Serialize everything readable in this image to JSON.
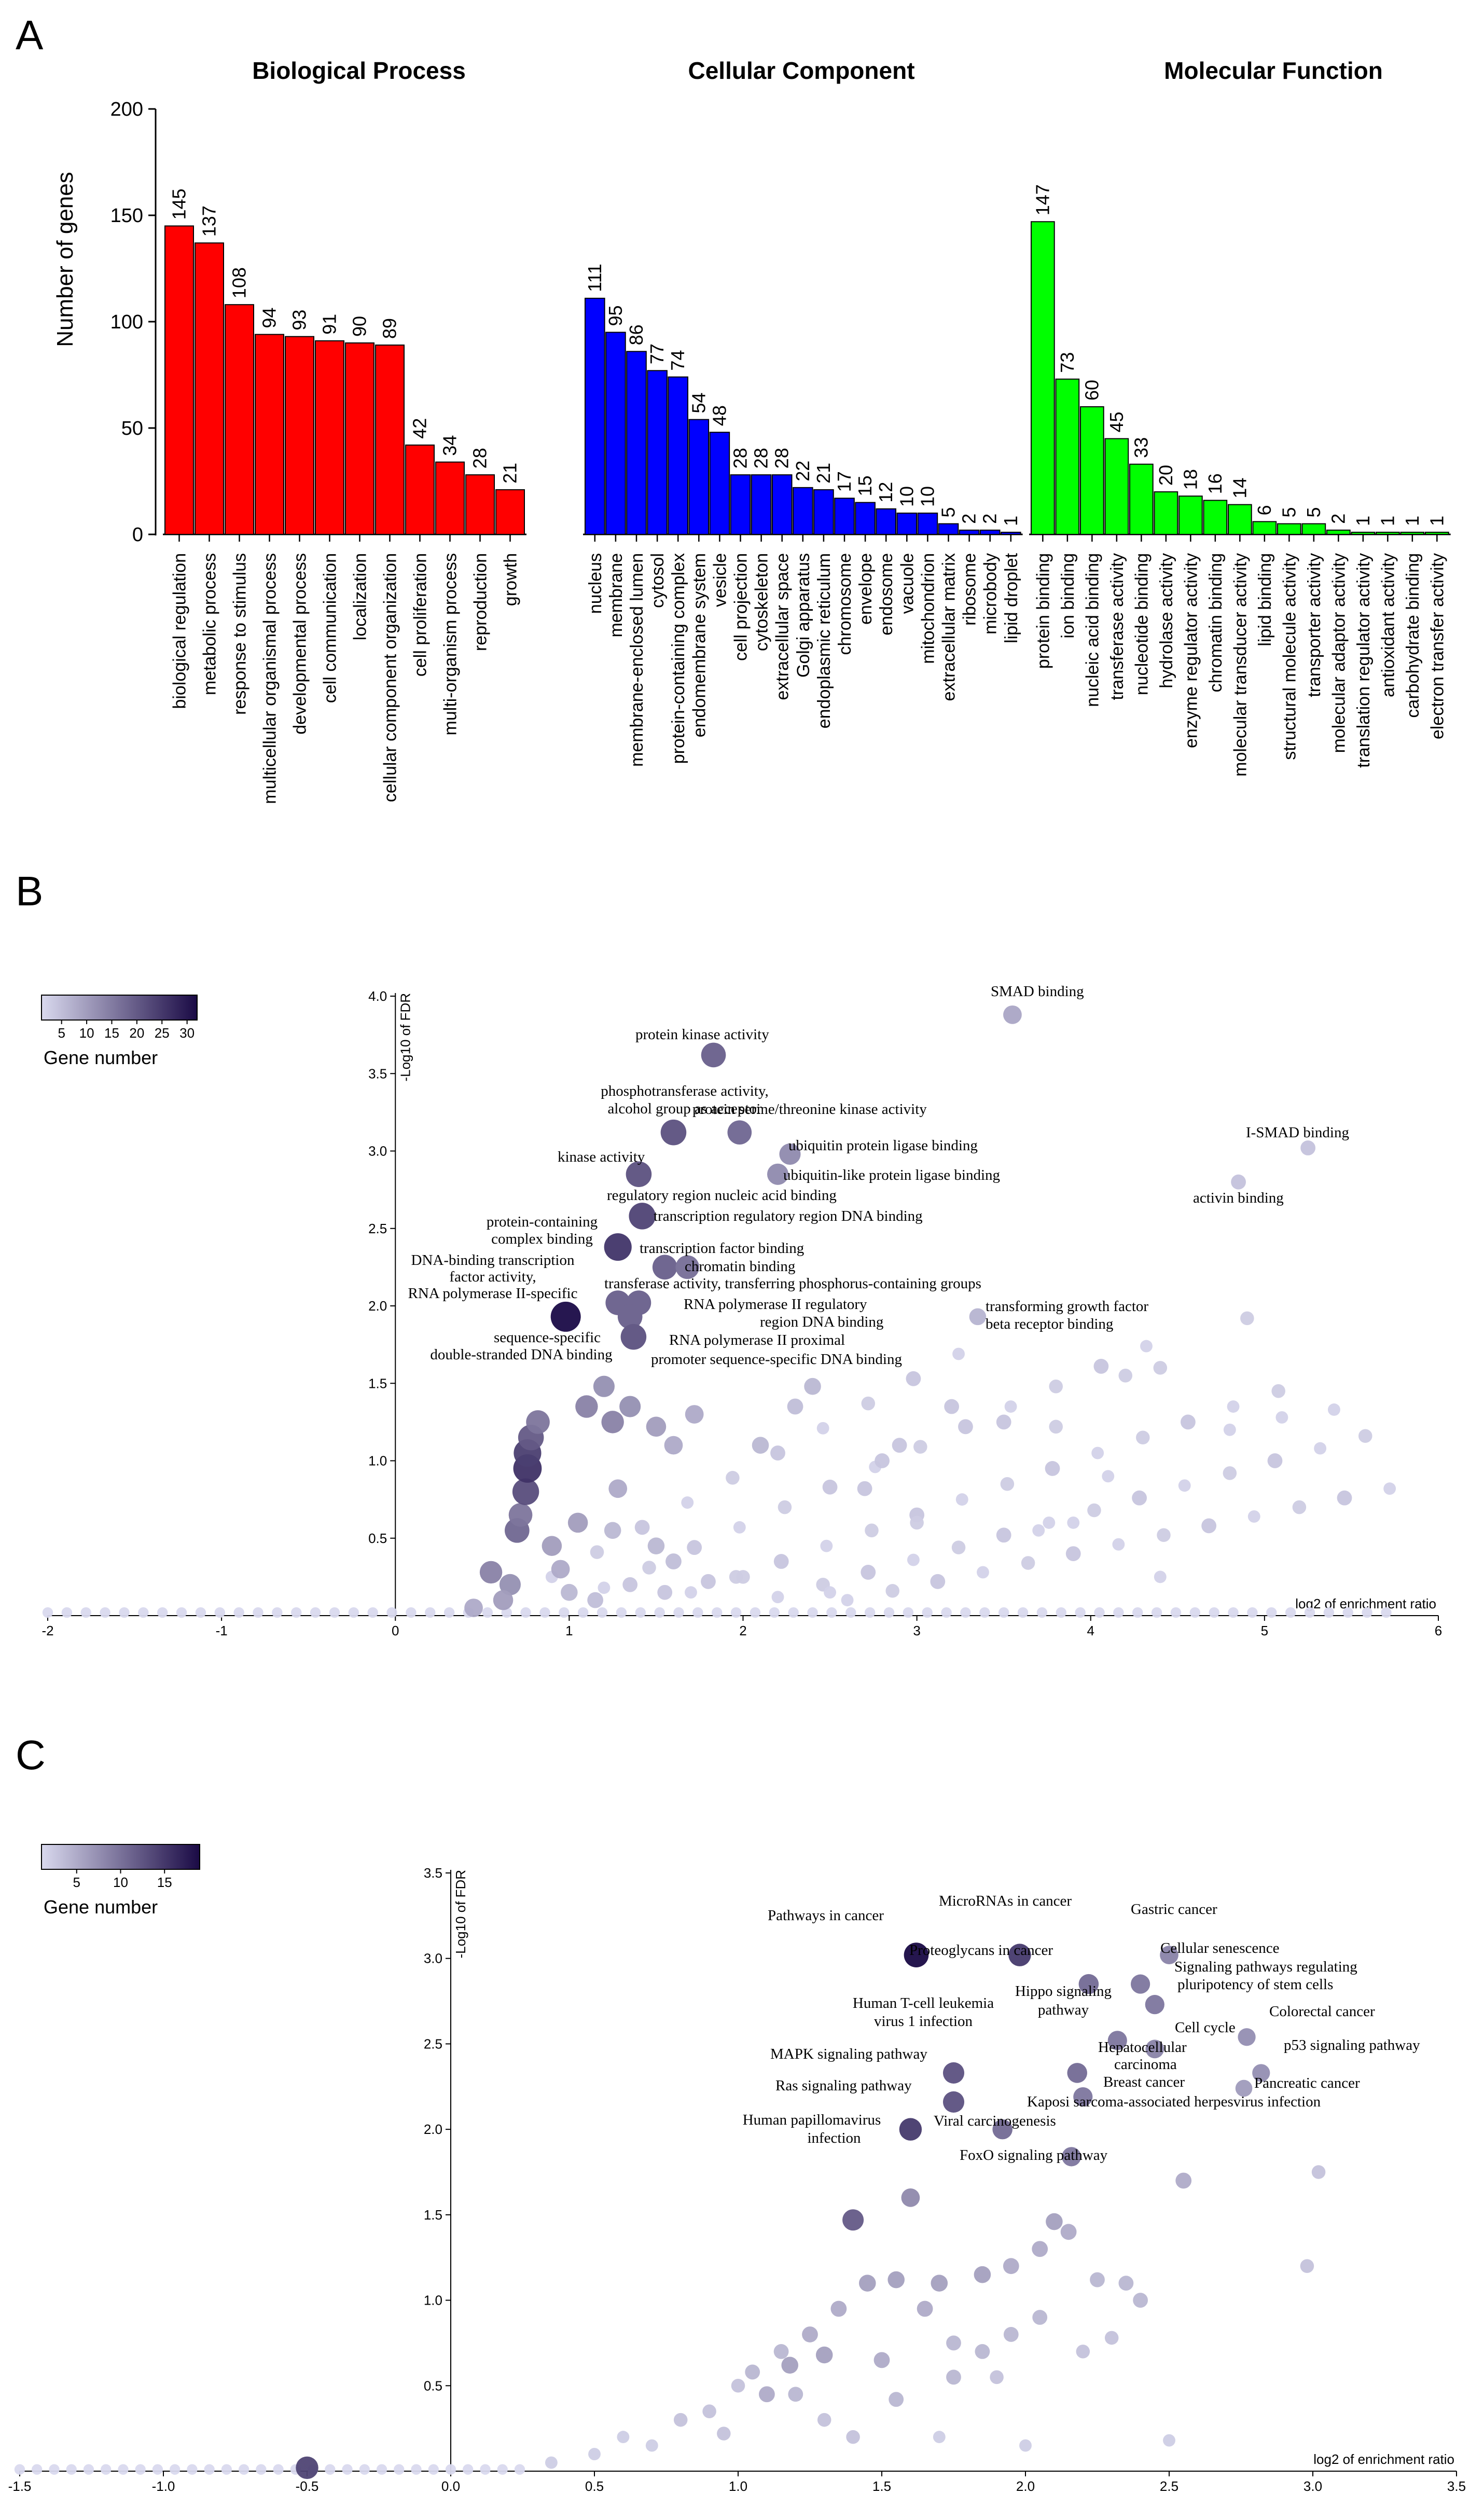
{
  "panel_letters": [
    "A",
    "B",
    "C"
  ],
  "chart_data": [
    {
      "type": "bar",
      "ylabel": "Number of genes",
      "ylim": [
        0,
        200
      ],
      "yticks": [
        0,
        50,
        100,
        150,
        200
      ],
      "groups": [
        {
          "name": "Biological Process",
          "color": "#ff0000",
          "categories": [
            "biological regulation",
            "metabolic process",
            "response to stimulus",
            "multicellular organismal process",
            "developmental process",
            "cell communication",
            "localization",
            "cellular component organization",
            "cell proliferation",
            "multi-organism process",
            "reproduction",
            "growth"
          ],
          "values": [
            145,
            137,
            108,
            94,
            93,
            91,
            90,
            89,
            42,
            34,
            28,
            21
          ]
        },
        {
          "name": "Cellular Component",
          "color": "#0000ff",
          "categories": [
            "nucleus",
            "membrane",
            "membrane-enclosed lumen",
            "cytosol",
            "protein-containing complex",
            "endomembrane system",
            "vesicle",
            "cell projection",
            "cytoskeleton",
            "extracellular space",
            "Golgi apparatus",
            "endoplasmic reticulum",
            "chromosome",
            "envelope",
            "endosome",
            "vacuole",
            "mitochondrion",
            "extracellular matrix",
            "ribosome",
            "microbody",
            "lipid droplet"
          ],
          "values": [
            111,
            95,
            86,
            77,
            74,
            54,
            48,
            28,
            28,
            28,
            22,
            21,
            17,
            15,
            12,
            10,
            10,
            5,
            2,
            2,
            1
          ]
        },
        {
          "name": "Molecular Function",
          "color": "#00ff00",
          "categories": [
            "protein binding",
            "ion binding",
            "nucleic acid binding",
            "transferase activity",
            "nucleotide binding",
            "hydrolase activity",
            "enzyme regulator activity",
            "chromatin binding",
            "molecular transducer activity",
            "lipid binding",
            "structural molecule activity",
            "transporter activity",
            "molecular adaptor activity",
            "translation regulator activity",
            "antioxidant activity",
            "carbohydrate binding",
            "electron transfer activity"
          ],
          "values": [
            147,
            73,
            60,
            45,
            33,
            20,
            18,
            16,
            14,
            6,
            5,
            5,
            2,
            1,
            1,
            1,
            1
          ]
        }
      ]
    },
    {
      "type": "scatter",
      "xlabel": "log2 of enrichment ratio",
      "ylabel": "-Log10 of FDR",
      "xlim": [
        -2,
        6
      ],
      "ylim": [
        0,
        4.0
      ],
      "xticks": [
        -2,
        -1,
        0,
        1,
        2,
        3,
        4,
        5,
        6
      ],
      "yticks": [
        "0.5",
        "1.0",
        "1.5",
        "2.0",
        "2.5",
        "3.0",
        "3.5",
        "4.0"
      ],
      "legend": {
        "title": "Gene number",
        "ticks": [
          "5",
          "10",
          "15",
          "20",
          "25",
          "30"
        ],
        "min": 1,
        "max": 32,
        "color_low": "#d9d9ee",
        "color_high": "#1a0a45"
      },
      "labeled_points": [
        {
          "x": 3.55,
          "y": 3.88,
          "n": 8,
          "label": "SMAD binding"
        },
        {
          "x": 1.83,
          "y": 3.62,
          "n": 18,
          "label": "protein kinase activity"
        },
        {
          "x": 1.6,
          "y": 3.12,
          "n": 20,
          "label": "phosphotransferase activity, alcohol group as acceptor"
        },
        {
          "x": 1.98,
          "y": 3.12,
          "n": 17,
          "label": "protein serine/threonine kinase activity"
        },
        {
          "x": 2.27,
          "y": 2.98,
          "n": 12,
          "label": "ubiquitin protein ligase binding"
        },
        {
          "x": 5.25,
          "y": 3.02,
          "n": 4,
          "label": "I-SMAD binding"
        },
        {
          "x": 1.4,
          "y": 2.85,
          "n": 20,
          "label": "kinase activity"
        },
        {
          "x": 2.2,
          "y": 2.85,
          "n": 12,
          "label": "ubiquitin-like protein ligase binding"
        },
        {
          "x": 4.85,
          "y": 2.8,
          "n": 4,
          "label": "activin binding"
        },
        {
          "x": 1.42,
          "y": 2.58,
          "n": 22,
          "label": "regulatory region nucleic acid binding"
        },
        {
          "x": 1.28,
          "y": 2.38,
          "n": 24,
          "label": "protein-containing complex binding"
        },
        {
          "x": 1.55,
          "y": 2.25,
          "n": 18,
          "label": "transcription factor binding"
        },
        {
          "x": 1.68,
          "y": 2.25,
          "n": 16,
          "label": "chromatin binding"
        },
        {
          "x": 1.28,
          "y": 2.02,
          "n": 18,
          "label": "transferase activity, transferring phosphorus-containing groups"
        },
        {
          "x": 1.4,
          "y": 2.02,
          "n": 18,
          "label": "RNA polymerase II regulatory region DNA binding"
        },
        {
          "x": 1.35,
          "y": 1.93,
          "n": 18,
          "label": "RNA polymerase II proximal promoter sequence-specific DNA binding"
        },
        {
          "x": 3.35,
          "y": 1.93,
          "n": 6,
          "label": "transforming growth factor beta receptor binding"
        },
        {
          "x": 0.98,
          "y": 1.93,
          "n": 30,
          "label": "DNA-binding transcription factor activity, RNA polymerase II-specific"
        },
        {
          "x": 1.37,
          "y": 1.8,
          "n": 20,
          "label": "sequence-specific double-stranded DNA binding"
        }
      ],
      "labels": {
        "SMAD binding": "SMAD binding",
        "protein kinase activity": "protein kinase activity",
        "phosphotransferase 1": "phosphotransferase activity,",
        "phosphotransferase 2": "alcohol group as acceptor",
        "serine": "protein serine/threonine kinase activity",
        "ubiquitin": "ubiquitin protein ligase binding",
        "ismad": "I-SMAD binding",
        "kinase": "kinase activity",
        "ubiquitin-like": "ubiquitin-like protein ligase binding",
        "activin": "activin binding",
        "regulatory": "regulatory region nucleic acid binding",
        "transcription regulatory": "transcription regulatory region DNA binding",
        "pcc 1": "protein-containing",
        "pcc 2": "complex binding",
        "tf binding": "transcription factor binding",
        "chromatin": "chromatin binding",
        "dna tf 1": "DNA-binding transcription",
        "dna tf 2": "factor activity,",
        "dna tf 3": "RNA polymerase II-specific",
        "transferase": "transferase activity, transferring phosphorus-containing groups",
        "rnap reg 1": "RNA polymerase II regulatory",
        "rnap reg 2": "region DNA binding",
        "tgf 1": "transforming growth factor",
        "tgf 2": "beta receptor binding",
        "seq 1": "sequence-specific",
        "seq 2": "double-stranded DNA binding",
        "rnap prox 1": "RNA polymerase II proximal",
        "rnap prox 2": "promoter sequence-specific DNA binding"
      }
    },
    {
      "type": "scatter",
      "xlabel": "log2 of enrichment ratio",
      "ylabel": "-Log10 of FDR",
      "xlim": [
        -1.5,
        3.5
      ],
      "ylim": [
        0,
        3.5
      ],
      "xticks": [
        "-1.5",
        "-1.0",
        "-0.5",
        "0.0",
        "0.5",
        "1.0",
        "1.5",
        "2.0",
        "2.5",
        "3.0",
        "3.5"
      ],
      "yticks": [
        "0.5",
        "1.0",
        "1.5",
        "2.0",
        "2.5",
        "3.0",
        "3.5"
      ],
      "legend": {
        "title": "Gene number",
        "ticks": [
          "5",
          "10",
          "15"
        ],
        "min": 1,
        "max": 19,
        "color_low": "#d9d9ee",
        "color_high": "#1a0a45"
      },
      "labeled_points": [
        {
          "x": 1.62,
          "y": 3.02,
          "n": 18,
          "label": "Pathways in cancer"
        },
        {
          "x": 1.98,
          "y": 3.02,
          "n": 14,
          "label": "MicroRNAs in cancer"
        },
        {
          "x": 2.5,
          "y": 3.02,
          "n": 8,
          "label": "Gastric cancer"
        },
        {
          "x": 2.22,
          "y": 2.85,
          "n": 10,
          "label": "Proteoglycans in cancer"
        },
        {
          "x": 2.4,
          "y": 2.85,
          "n": 9,
          "label": "Cellular senescence"
        },
        {
          "x": 2.45,
          "y": 2.73,
          "n": 9,
          "label": "Signaling pathways regulating pluripotency of stem cells"
        },
        {
          "x": 2.32,
          "y": 2.52,
          "n": 9,
          "label": "Hippo signaling pathway"
        },
        {
          "x": 2.77,
          "y": 2.54,
          "n": 7,
          "label": "Colorectal cancer"
        },
        {
          "x": 2.45,
          "y": 2.47,
          "n": 8,
          "label": "Cell cycle"
        },
        {
          "x": 1.75,
          "y": 2.33,
          "n": 12,
          "label": "MAPK signaling pathway"
        },
        {
          "x": 2.18,
          "y": 2.33,
          "n": 10,
          "label": "Hepatocellular carcinoma"
        },
        {
          "x": 2.82,
          "y": 2.33,
          "n": 7,
          "label": "p53 signaling pathway"
        },
        {
          "x": 1.75,
          "y": 2.16,
          "n": 12,
          "label": "Ras signaling pathway"
        },
        {
          "x": 2.2,
          "y": 2.19,
          "n": 9,
          "label": "Breast cancer"
        },
        {
          "x": 2.76,
          "y": 2.24,
          "n": 6,
          "label": "Pancreatic cancer"
        },
        {
          "x": 1.6,
          "y": 2.0,
          "n": 14,
          "label": "Human papillomavirus infection"
        },
        {
          "x": 1.92,
          "y": 2.0,
          "n": 10,
          "label": "Kaposi sarcoma-associated herpesvirus infection"
        },
        {
          "x": 2.16,
          "y": 1.84,
          "n": 9,
          "label": "FoxO signaling pathway"
        }
      ],
      "labels": {
        "pathways": "Pathways in cancer",
        "micro": "MicroRNAs in cancer",
        "gastric": "Gastric cancer",
        "proteo": "Proteoglycans in cancer",
        "senescence": "Cellular senescence",
        "pluri 1": "Signaling pathways regulating",
        "pluri 2": "pluripotency of stem cells",
        "hippo 1": "Hippo signaling",
        "hippo 2": "pathway",
        "htlv 1": "Human T-cell leukemia",
        "htlv 2": "virus 1 infection",
        "colorectal": "Colorectal cancer",
        "cellcycle": "Cell cycle",
        "mapk": "MAPK signaling pathway",
        "hcc 1": "Hepatocellular",
        "hcc 2": "carcinoma",
        "p53": "p53 signaling pathway",
        "ras": "Ras signaling pathway",
        "breast": "Breast cancer",
        "pancreatic": "Pancreatic cancer",
        "kaposi": "Kaposi sarcoma-associated herpesvirus infection",
        "hpv 1": "Human papillomavirus",
        "hpv 2": "infection",
        "viral": "Viral carcinogenesis",
        "foxo": "FoxO signaling pathway"
      }
    }
  ]
}
